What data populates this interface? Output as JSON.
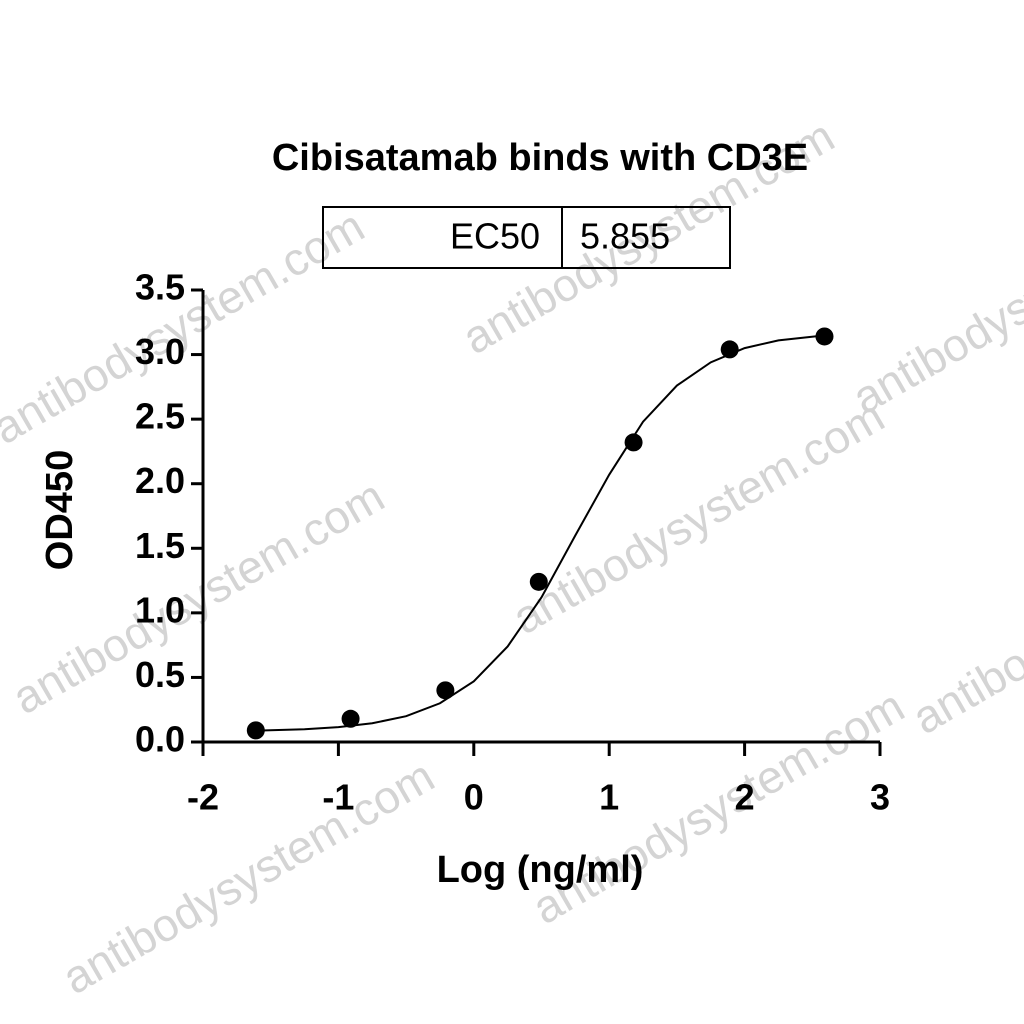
{
  "chart_data": {
    "type": "scatter",
    "title": "Cibisatamab binds with CD3E",
    "x_label": "Log (ng/ml)",
    "y_label": "OD450",
    "legend_table": {
      "label": "EC50",
      "value": 5.855
    },
    "watermark": "antibodysystem.com",
    "color": "#000000",
    "x": [
      -1.61,
      -0.91,
      -0.21,
      0.48,
      1.18,
      1.89,
      2.59
    ],
    "values": [
      0.09,
      0.18,
      0.4,
      1.24,
      2.32,
      3.04,
      3.14
    ],
    "fit_curve": {
      "x": [
        -1.6,
        -1.25,
        -1.0,
        -0.75,
        -0.5,
        -0.25,
        0,
        0.25,
        0.5,
        0.75,
        1.0,
        1.25,
        1.5,
        1.75,
        2.0,
        2.25,
        2.6
      ],
      "y": [
        0.088,
        0.099,
        0.115,
        0.145,
        0.2,
        0.3,
        0.47,
        0.74,
        1.12,
        1.6,
        2.07,
        2.48,
        2.76,
        2.94,
        3.05,
        3.11,
        3.15
      ]
    },
    "xlim": [
      -2,
      3
    ],
    "xticks": [
      -2,
      -1,
      0,
      1,
      2,
      3
    ],
    "ylim": [
      0,
      3.5
    ],
    "yticks": [
      {
        "value": 0,
        "label": "0.0"
      },
      0.5,
      {
        "value": 1,
        "label": "1.0"
      },
      1.5,
      {
        "value": 2,
        "label": "2.0"
      },
      2.5,
      {
        "value": 3,
        "label": "3.0"
      },
      3.5
    ],
    "grid": false
  }
}
